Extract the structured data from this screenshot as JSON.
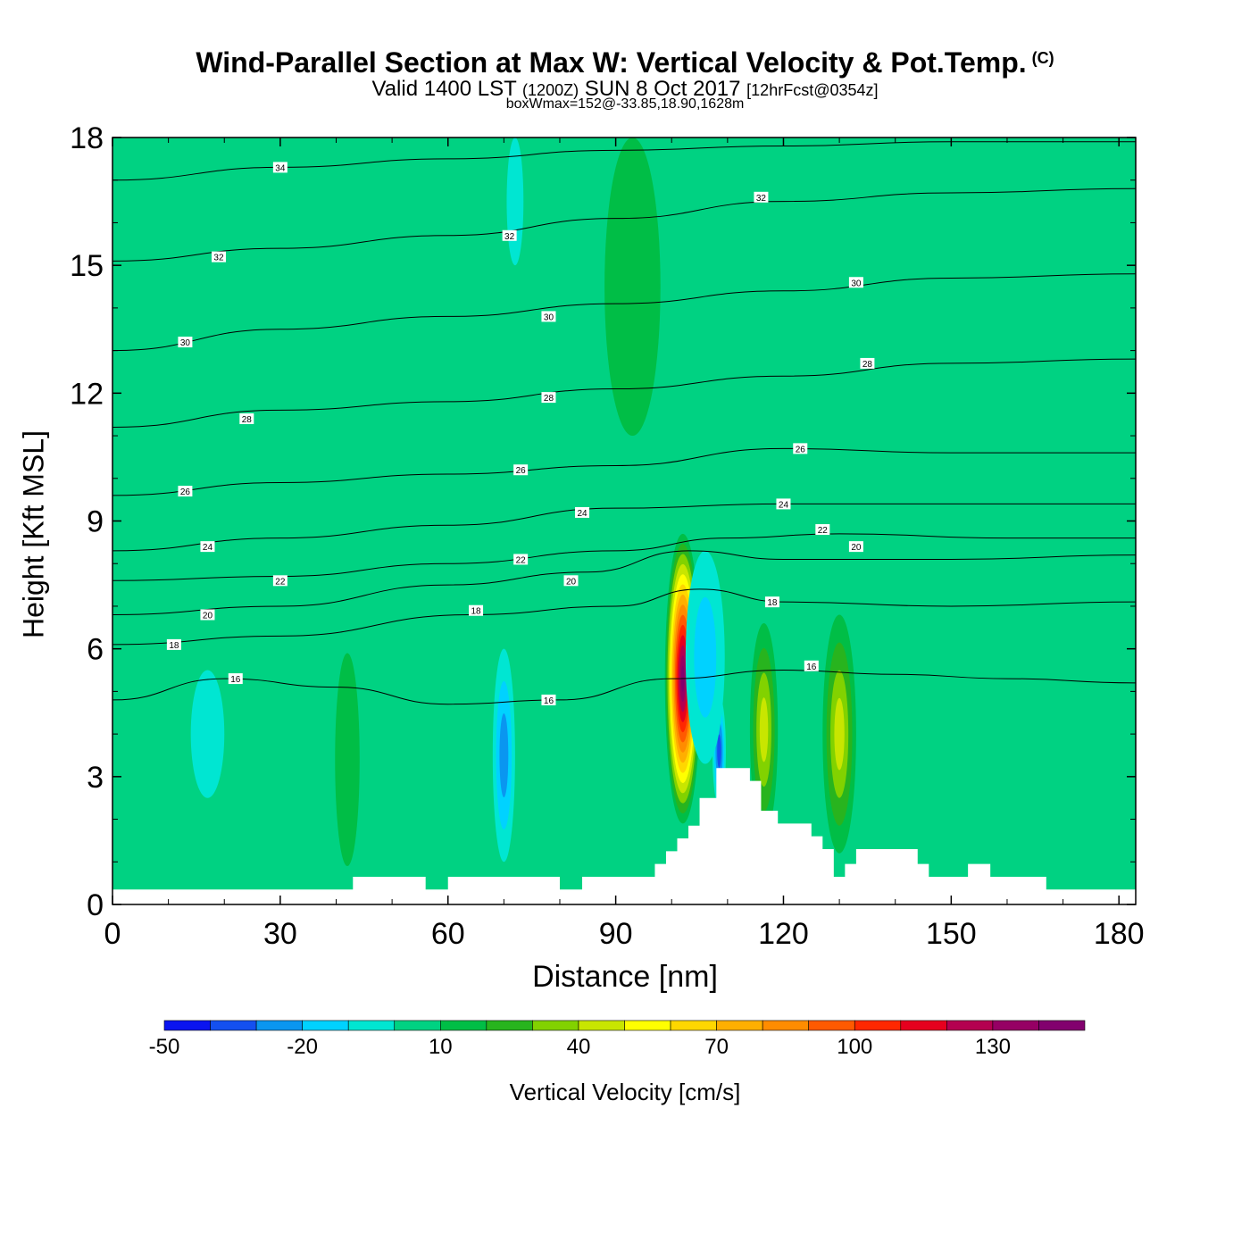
{
  "header": {
    "title": "Wind-Parallel Section at Max W: Vertical Velocity & Pot.Temp.",
    "copyright": "(C)",
    "valid_prefix": "Valid 1400 LST",
    "valid_utc": "(1200Z)",
    "valid_date": "SUN 8 Oct 2017",
    "forecast": "[12hrFcst@0354z]",
    "boxwmax": "boxWmax=152@-33.85,18.90,1628m"
  },
  "chart_data": {
    "type": "heatmap",
    "title": "Wind-Parallel Section at Max W: Vertical Velocity & Pot.Temp.",
    "xlabel": "Distance [nm]",
    "ylabel": "Height [Kft MSL]",
    "xlim": [
      0,
      183
    ],
    "ylim": [
      0,
      18
    ],
    "x_ticks": [
      0,
      30,
      60,
      90,
      120,
      150,
      180
    ],
    "y_ticks": [
      0,
      3,
      6,
      9,
      12,
      15,
      18
    ],
    "colorbar": {
      "label": "Vertical Velocity [cm/s]",
      "levels": [
        -50,
        -40,
        -30,
        -20,
        -10,
        0,
        10,
        20,
        30,
        40,
        50,
        60,
        70,
        80,
        90,
        100,
        110,
        120,
        130,
        140,
        150
      ],
      "tick_labels": [
        "-50",
        "-20",
        "10",
        "40",
        "70",
        "100",
        "130"
      ],
      "tick_values": [
        -50,
        -20,
        10,
        40,
        70,
        100,
        130
      ],
      "colors": [
        "#0a14f0",
        "#1450f0",
        "#0a96f0",
        "#00d2ff",
        "#00e6d2",
        "#00d282",
        "#00be46",
        "#28b41e",
        "#82d200",
        "#c8e600",
        "#ffff00",
        "#ffd700",
        "#ffaf00",
        "#ff8c00",
        "#ff5a00",
        "#ff2800",
        "#e6001e",
        "#b40050",
        "#960064",
        "#82006e"
      ]
    },
    "max_updraft": {
      "x": 102,
      "y": 5.3,
      "value": 152
    },
    "terrain": [
      [
        0,
        0.35
      ],
      [
        43,
        0.35
      ],
      [
        43,
        0.65
      ],
      [
        56,
        0.65
      ],
      [
        56,
        0.35
      ],
      [
        60,
        0.35
      ],
      [
        60,
        0.65
      ],
      [
        80,
        0.65
      ],
      [
        80,
        0.35
      ],
      [
        84,
        0.35
      ],
      [
        84,
        0.65
      ],
      [
        97,
        0.65
      ],
      [
        97,
        0.95
      ],
      [
        99,
        0.95
      ],
      [
        99,
        1.25
      ],
      [
        101,
        1.25
      ],
      [
        101,
        1.55
      ],
      [
        103,
        1.55
      ],
      [
        103,
        1.85
      ],
      [
        105,
        1.85
      ],
      [
        105,
        2.5
      ],
      [
        108,
        2.5
      ],
      [
        108,
        3.2
      ],
      [
        114,
        3.2
      ],
      [
        114,
        2.9
      ],
      [
        116,
        2.9
      ],
      [
        116,
        2.2
      ],
      [
        119,
        2.2
      ],
      [
        119,
        1.9
      ],
      [
        125,
        1.9
      ],
      [
        125,
        1.6
      ],
      [
        127,
        1.6
      ],
      [
        127,
        1.3
      ],
      [
        129,
        1.3
      ],
      [
        129,
        0.65
      ],
      [
        131,
        0.65
      ],
      [
        131,
        0.95
      ],
      [
        133,
        0.95
      ],
      [
        133,
        1.3
      ],
      [
        144,
        1.3
      ],
      [
        144,
        0.95
      ],
      [
        146,
        0.95
      ],
      [
        146,
        0.65
      ],
      [
        153,
        0.65
      ],
      [
        153,
        0.95
      ],
      [
        157,
        0.95
      ],
      [
        157,
        0.65
      ],
      [
        167,
        0.65
      ],
      [
        167,
        0.35
      ],
      [
        183,
        0.35
      ]
    ],
    "isentropes": [
      {
        "value": 16,
        "points": [
          [
            0,
            4.8
          ],
          [
            20,
            5.3
          ],
          [
            40,
            5.1
          ],
          [
            60,
            4.7
          ],
          [
            80,
            4.8
          ],
          [
            100,
            5.3
          ],
          [
            120,
            5.5
          ],
          [
            140,
            5.4
          ],
          [
            160,
            5.3
          ],
          [
            183,
            5.2
          ]
        ]
      },
      {
        "value": 18,
        "points": [
          [
            0,
            6.1
          ],
          [
            30,
            6.3
          ],
          [
            64,
            6.8
          ],
          [
            90,
            7.0
          ],
          [
            105,
            7.4
          ],
          [
            120,
            7.1
          ],
          [
            150,
            7.0
          ],
          [
            183,
            7.1
          ]
        ]
      },
      {
        "value": 20,
        "points": [
          [
            0,
            6.8
          ],
          [
            30,
            7.0
          ],
          [
            60,
            7.5
          ],
          [
            85,
            7.8
          ],
          [
            103,
            8.3
          ],
          [
            120,
            8.1
          ],
          [
            150,
            8.1
          ],
          [
            183,
            8.2
          ]
        ]
      },
      {
        "value": 22,
        "points": [
          [
            0,
            7.6
          ],
          [
            30,
            7.7
          ],
          [
            60,
            8.0
          ],
          [
            90,
            8.3
          ],
          [
            110,
            8.6
          ],
          [
            130,
            8.7
          ],
          [
            160,
            8.6
          ],
          [
            183,
            8.6
          ]
        ]
      },
      {
        "value": 24,
        "points": [
          [
            0,
            8.3
          ],
          [
            30,
            8.6
          ],
          [
            60,
            8.9
          ],
          [
            90,
            9.3
          ],
          [
            120,
            9.4
          ],
          [
            150,
            9.4
          ],
          [
            183,
            9.4
          ]
        ]
      },
      {
        "value": 26,
        "points": [
          [
            0,
            9.6
          ],
          [
            30,
            9.9
          ],
          [
            60,
            10.1
          ],
          [
            90,
            10.3
          ],
          [
            120,
            10.7
          ],
          [
            150,
            10.6
          ],
          [
            183,
            10.6
          ]
        ]
      },
      {
        "value": 28,
        "points": [
          [
            0,
            11.2
          ],
          [
            30,
            11.6
          ],
          [
            60,
            11.8
          ],
          [
            90,
            12.1
          ],
          [
            120,
            12.4
          ],
          [
            150,
            12.7
          ],
          [
            183,
            12.8
          ]
        ]
      },
      {
        "value": 30,
        "points": [
          [
            0,
            13.0
          ],
          [
            30,
            13.5
          ],
          [
            60,
            13.8
          ],
          [
            90,
            14.1
          ],
          [
            120,
            14.4
          ],
          [
            150,
            14.7
          ],
          [
            183,
            14.8
          ]
        ]
      },
      {
        "value": 32,
        "points": [
          [
            0,
            15.1
          ],
          [
            30,
            15.4
          ],
          [
            60,
            15.7
          ],
          [
            90,
            16.1
          ],
          [
            120,
            16.5
          ],
          [
            150,
            16.7
          ],
          [
            183,
            16.8
          ]
        ]
      },
      {
        "value": 34,
        "points": [
          [
            0,
            17.0
          ],
          [
            30,
            17.3
          ],
          [
            60,
            17.5
          ],
          [
            90,
            17.7
          ],
          [
            120,
            17.8
          ],
          [
            150,
            17.9
          ],
          [
            183,
            17.9
          ]
        ]
      }
    ],
    "contour_labels": [
      {
        "text": "34",
        "x": 30,
        "y": 17.3
      },
      {
        "text": "32",
        "x": 19,
        "y": 15.2
      },
      {
        "text": "32",
        "x": 71,
        "y": 15.7
      },
      {
        "text": "32",
        "x": 116,
        "y": 16.6
      },
      {
        "text": "30",
        "x": 13,
        "y": 13.2
      },
      {
        "text": "30",
        "x": 78,
        "y": 13.8
      },
      {
        "text": "30",
        "x": 133,
        "y": 14.6
      },
      {
        "text": "28",
        "x": 24,
        "y": 11.4
      },
      {
        "text": "28",
        "x": 78,
        "y": 11.9
      },
      {
        "text": "28",
        "x": 135,
        "y": 12.7
      },
      {
        "text": "26",
        "x": 13,
        "y": 9.7
      },
      {
        "text": "26",
        "x": 73,
        "y": 10.2
      },
      {
        "text": "26",
        "x": 123,
        "y": 10.7
      },
      {
        "text": "24",
        "x": 17,
        "y": 8.4
      },
      {
        "text": "24",
        "x": 84,
        "y": 9.2
      },
      {
        "text": "24",
        "x": 120,
        "y": 9.4
      },
      {
        "text": "22",
        "x": 30,
        "y": 7.6
      },
      {
        "text": "22",
        "x": 73,
        "y": 8.1
      },
      {
        "text": "22",
        "x": 127,
        "y": 8.8
      },
      {
        "text": "20",
        "x": 17,
        "y": 6.8
      },
      {
        "text": "20",
        "x": 82,
        "y": 7.6
      },
      {
        "text": "20",
        "x": 133,
        "y": 8.4
      },
      {
        "text": "18",
        "x": 11,
        "y": 6.1
      },
      {
        "text": "18",
        "x": 65,
        "y": 6.9
      },
      {
        "text": "18",
        "x": 118,
        "y": 7.1
      },
      {
        "text": "16",
        "x": 22,
        "y": 5.3
      },
      {
        "text": "16",
        "x": 78,
        "y": 4.8
      },
      {
        "text": "16",
        "x": 125,
        "y": 5.6
      }
    ],
    "features": [
      {
        "kind": "updraft_core",
        "x": 102,
        "y": 5.3,
        "rx": 3.2,
        "ry": 3.4,
        "peak": 152
      },
      {
        "kind": "updraft",
        "x": 116.5,
        "y": 4.1,
        "rx": 2.5,
        "ry": 2.5,
        "peak": 45
      },
      {
        "kind": "updraft",
        "x": 130,
        "y": 4.0,
        "rx": 3.0,
        "ry": 2.8,
        "peak": 50
      },
      {
        "kind": "updraft",
        "x": 42,
        "y": 3.4,
        "rx": 2.2,
        "ry": 2.5,
        "peak": 20
      },
      {
        "kind": "updraft",
        "x": 93,
        "y": 14.5,
        "rx": 5,
        "ry": 3.5,
        "peak": 15
      },
      {
        "kind": "downdraft",
        "x": 70,
        "y": 3.5,
        "rx": 2.0,
        "ry": 2.5,
        "peak": -25
      },
      {
        "kind": "downdraft",
        "x": 108.5,
        "y": 3.6,
        "rx": 1.2,
        "ry": 1.3,
        "peak": -40
      },
      {
        "kind": "downdraft",
        "x": 106,
        "y": 5.8,
        "rx": 3.5,
        "ry": 2.5,
        "peak": -15
      },
      {
        "kind": "downdraft",
        "x": 72,
        "y": 16.5,
        "rx": 1.5,
        "ry": 1.5,
        "peak": -12
      },
      {
        "kind": "downdraft",
        "x": 17,
        "y": 4.0,
        "rx": 3.0,
        "ry": 1.5,
        "peak": -12
      }
    ]
  },
  "axes": {
    "x_tick_labels": [
      "0",
      "30",
      "60",
      "90",
      "120",
      "150",
      "180"
    ],
    "y_tick_labels": [
      "0",
      "3",
      "6",
      "9",
      "12",
      "15",
      "18"
    ]
  }
}
